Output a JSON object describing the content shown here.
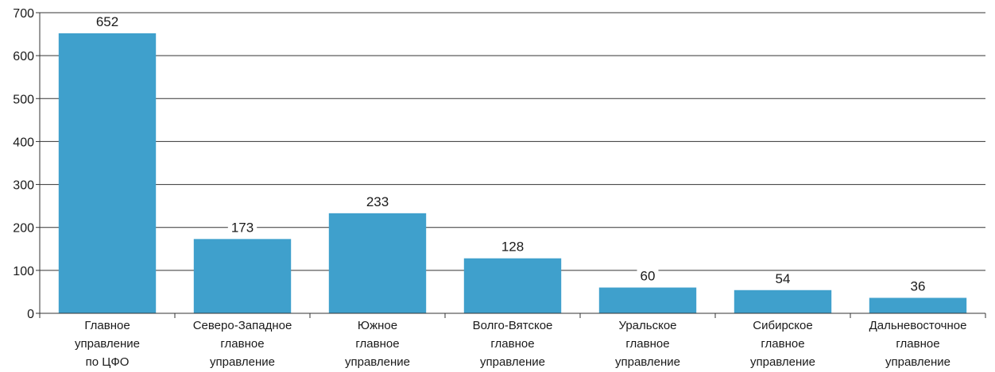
{
  "chart_data": {
    "type": "bar",
    "categories": [
      [
        "Главное",
        "управление",
        "по ЦФО"
      ],
      [
        "Северо-Западное",
        "главное",
        "управление"
      ],
      [
        "Южное",
        "главное",
        "управление"
      ],
      [
        "Волго-Вятское",
        "главное",
        "управление"
      ],
      [
        "Уральское",
        "главное",
        "управление"
      ],
      [
        "Сибирское",
        "главное",
        "управление"
      ],
      [
        "Дальневосточное",
        "главное",
        "управление"
      ]
    ],
    "values": [
      652,
      173,
      233,
      128,
      60,
      54,
      36
    ],
    "data_labels": [
      "652",
      "173",
      "233",
      "128",
      "60",
      "54",
      "36"
    ],
    "yticks": [
      0,
      100,
      200,
      300,
      400,
      500,
      600,
      700
    ],
    "ylim": [
      0,
      700
    ],
    "title": "",
    "xlabel": "",
    "ylabel": "",
    "grid": true,
    "bar_color": "#3FA0CC",
    "grid_color": "#333333"
  }
}
